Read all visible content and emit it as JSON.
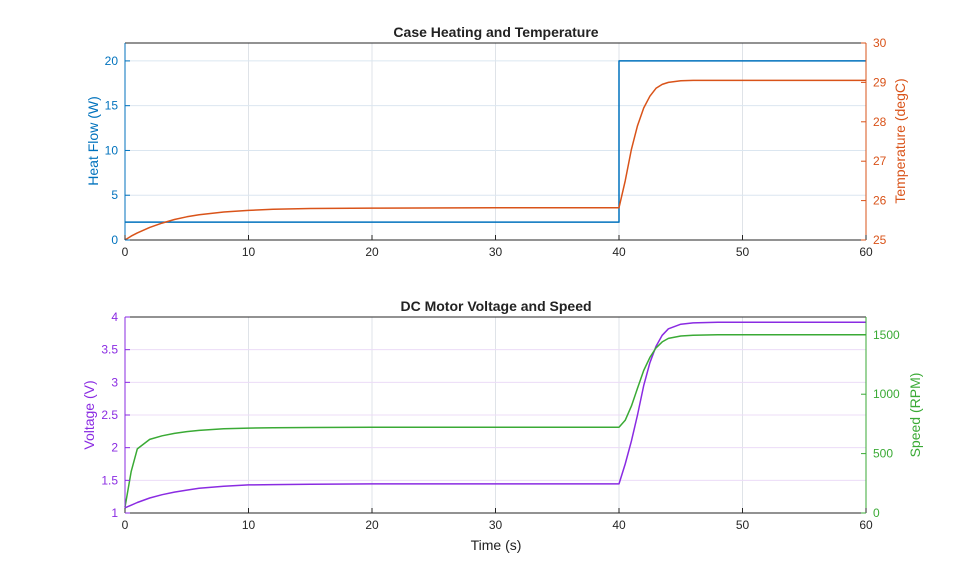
{
  "chart_data": [
    {
      "type": "line",
      "title": "Case Heating and Temperature",
      "xlabel": "",
      "xlim": [
        0,
        60
      ],
      "xticks": [
        0,
        10,
        20,
        30,
        40,
        50,
        60
      ],
      "grid": true,
      "left_axis": {
        "label": "Heat Flow (W)",
        "color": "#0072BD",
        "ylim": [
          0,
          22
        ],
        "ticks": [
          0,
          5,
          10,
          15,
          20
        ]
      },
      "right_axis": {
        "label": "Temperature (degC)",
        "color": "#D95319",
        "ylim": [
          25,
          30
        ],
        "ticks": [
          25,
          26,
          27,
          28,
          29,
          30
        ]
      },
      "series": [
        {
          "name": "Heat Flow",
          "axis": "left",
          "color": "#0072BD",
          "x": [
            0,
            40,
            40,
            60
          ],
          "y": [
            2,
            2,
            20,
            20
          ]
        },
        {
          "name": "Temperature",
          "axis": "right",
          "color": "#D95319",
          "x": [
            0,
            0.5,
            1,
            2,
            3,
            4,
            5,
            6,
            8,
            10,
            12,
            15,
            20,
            30,
            40,
            40.5,
            41,
            41.5,
            42,
            42.5,
            43,
            43.5,
            44,
            45,
            46,
            48,
            50,
            55,
            60
          ],
          "y": [
            25,
            25.1,
            25.18,
            25.32,
            25.43,
            25.52,
            25.59,
            25.64,
            25.71,
            25.75,
            25.78,
            25.8,
            25.81,
            25.82,
            25.82,
            26.5,
            27.3,
            27.9,
            28.35,
            28.65,
            28.85,
            28.95,
            29.0,
            29.04,
            29.05,
            29.05,
            29.05,
            29.05,
            29.05
          ]
        }
      ]
    },
    {
      "type": "line",
      "title": "DC Motor Voltage and Speed",
      "xlabel": "Time (s)",
      "xlim": [
        0,
        60
      ],
      "xticks": [
        0,
        10,
        20,
        30,
        40,
        50,
        60
      ],
      "grid": true,
      "left_axis": {
        "label": "Voltage (V)",
        "color": "#8A2BE2",
        "ylim": [
          1,
          4
        ],
        "ticks": [
          1,
          1.5,
          2,
          2.5,
          3,
          3.5,
          4
        ]
      },
      "right_axis": {
        "label": "Speed (RPM)",
        "color": "#3AAA35",
        "ylim": [
          0,
          1650
        ],
        "ticks": [
          0,
          500,
          1000,
          1500
        ]
      },
      "series": [
        {
          "name": "Voltage",
          "axis": "left",
          "color": "#8A2BE2",
          "x": [
            0,
            0.5,
            1,
            2,
            3,
            4,
            5,
            6,
            8,
            10,
            12,
            15,
            20,
            30,
            40,
            40.5,
            41,
            41.5,
            42,
            42.5,
            43,
            43.5,
            44,
            45,
            46,
            48,
            50,
            55,
            60
          ],
          "y": [
            1.08,
            1.12,
            1.16,
            1.23,
            1.28,
            1.32,
            1.35,
            1.38,
            1.41,
            1.43,
            1.435,
            1.44,
            1.445,
            1.445,
            1.445,
            1.75,
            2.1,
            2.5,
            2.95,
            3.3,
            3.55,
            3.72,
            3.82,
            3.89,
            3.91,
            3.92,
            3.92,
            3.92,
            3.92
          ]
        },
        {
          "name": "Speed",
          "axis": "right",
          "color": "#3AAA35",
          "x": [
            0,
            0.5,
            1,
            2,
            3,
            4,
            5,
            6,
            8,
            10,
            12,
            15,
            20,
            30,
            40,
            40.5,
            41,
            41.5,
            42,
            42.5,
            43,
            43.5,
            44,
            45,
            46,
            48,
            50,
            55,
            60
          ],
          "y": [
            50,
            350,
            540,
            620,
            650,
            670,
            685,
            695,
            710,
            715,
            718,
            720,
            722,
            722,
            722,
            780,
            900,
            1050,
            1200,
            1310,
            1390,
            1440,
            1470,
            1490,
            1497,
            1500,
            1500,
            1500,
            1500
          ]
        }
      ]
    }
  ]
}
